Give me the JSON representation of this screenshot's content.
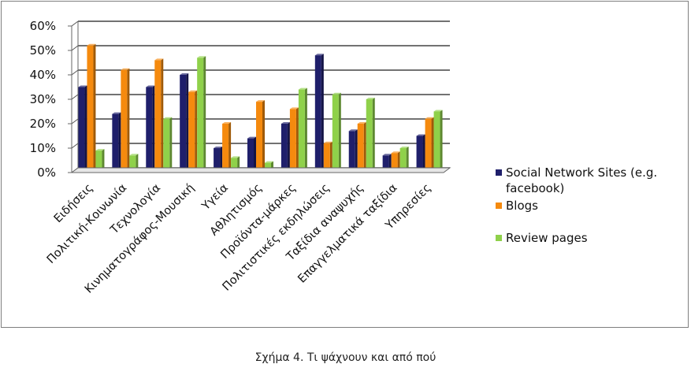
{
  "chart_data": {
    "type": "bar",
    "categories": [
      "Ειδήσεις",
      "Πολιτική-Κοινωνία",
      "Τεχνολογία",
      "Κινηματογράφος-Μουσική",
      "Υγεία",
      "Αθλητισμός",
      "Προϊόντα-μάρκες",
      "Πολιτιστικές εκδηλώσεις",
      "Ταξίδια αναψυχής",
      "Επαγγελματικά ταξίδια",
      "Υπηρεσίες"
    ],
    "series": [
      {
        "name": "Social Network Sites (e.g. facebook)",
        "color": "#1f1f6b",
        "values": [
          35,
          24,
          35,
          40,
          10,
          14,
          20,
          48,
          17,
          7,
          15
        ]
      },
      {
        "name": "Blogs",
        "color": "#f58a0e",
        "values": [
          52,
          42,
          46,
          33,
          20,
          29,
          26,
          12,
          20,
          8,
          22
        ]
      },
      {
        "name": "Review pages",
        "color": "#8fd14a",
        "values": [
          9,
          7,
          22,
          47,
          6,
          4,
          34,
          32,
          30,
          10,
          25
        ]
      }
    ],
    "yticks": [
      "0%",
      "10%",
      "20%",
      "30%",
      "40%",
      "50%",
      "60%"
    ],
    "ylim": [
      0,
      60
    ],
    "grid": true,
    "legend_position": "right"
  },
  "caption": "Σχήμα 4. Τι ψάχνουν και από πού"
}
